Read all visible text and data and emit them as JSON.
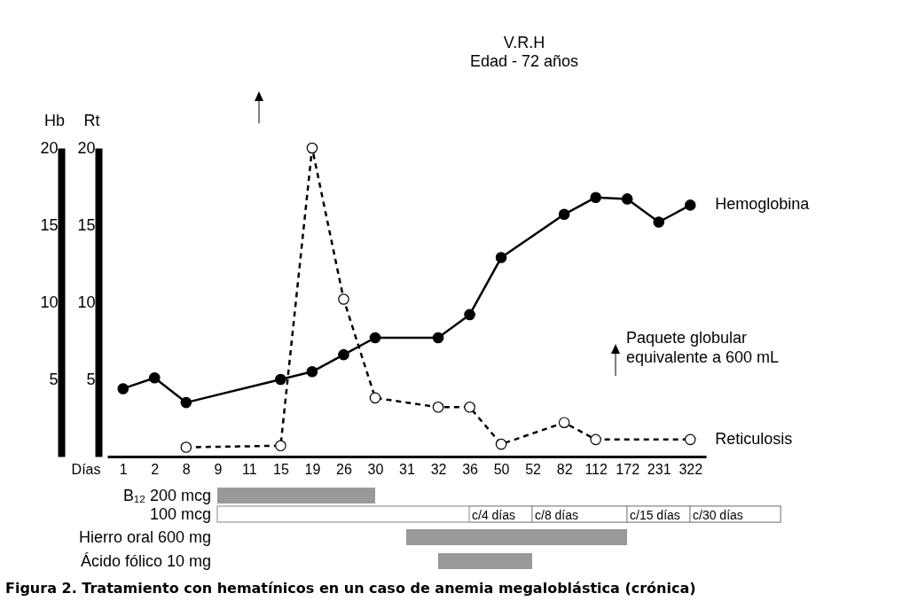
{
  "chart_data": {
    "type": "line",
    "title": "V.R.H",
    "subtitle": "Edad - 72 años",
    "xlabel": "Días",
    "ylabel": "Hb",
    "y2label": "Rt",
    "categories": [
      "1",
      "2",
      "8",
      "9",
      "11",
      "15",
      "19",
      "26",
      "30",
      "31",
      "32",
      "36",
      "50",
      "52",
      "82",
      "112",
      "172",
      "231",
      "322"
    ],
    "series": [
      {
        "name": "Hemoglobina",
        "color": "#000000",
        "line_style": "solid",
        "values": [
          4.4,
          5.1,
          3.5,
          null,
          null,
          5.0,
          5.5,
          6.6,
          7.7,
          null,
          7.7,
          9.2,
          12.9,
          null,
          15.7,
          16.8,
          16.7,
          15.2,
          16.3
        ]
      },
      {
        "name": "Reticulosis",
        "color": "#000000",
        "line_style": "dashed",
        "axis": "y2",
        "values": [
          null,
          null,
          0.6,
          null,
          null,
          0.7,
          20,
          10.2,
          3.8,
          null,
          3.2,
          3.2,
          0.8,
          null,
          2.2,
          1.1,
          null,
          null,
          1.1
        ]
      }
    ],
    "ylim": [
      0,
      20
    ],
    "yticks": [
      5,
      10,
      15,
      20
    ],
    "y2lim": [
      0,
      20
    ],
    "y2ticks": [
      5,
      10,
      15,
      20
    ],
    "marker": "circle",
    "grid": false,
    "legend": false,
    "annotations": [
      "Paquete globular equivalente a 600 mL",
      "B₁₂ 200 mcg",
      "100 mcg",
      "c/4 días",
      "c/8 días",
      "c/15 días",
      "c/30 días",
      "Hierro oral 600 mg",
      "Ácido fólico 10 mg",
      "Figura 2. Tratamiento con hematínicos en un caso de anemia megaloblástica (crónica)"
    ]
  }
}
